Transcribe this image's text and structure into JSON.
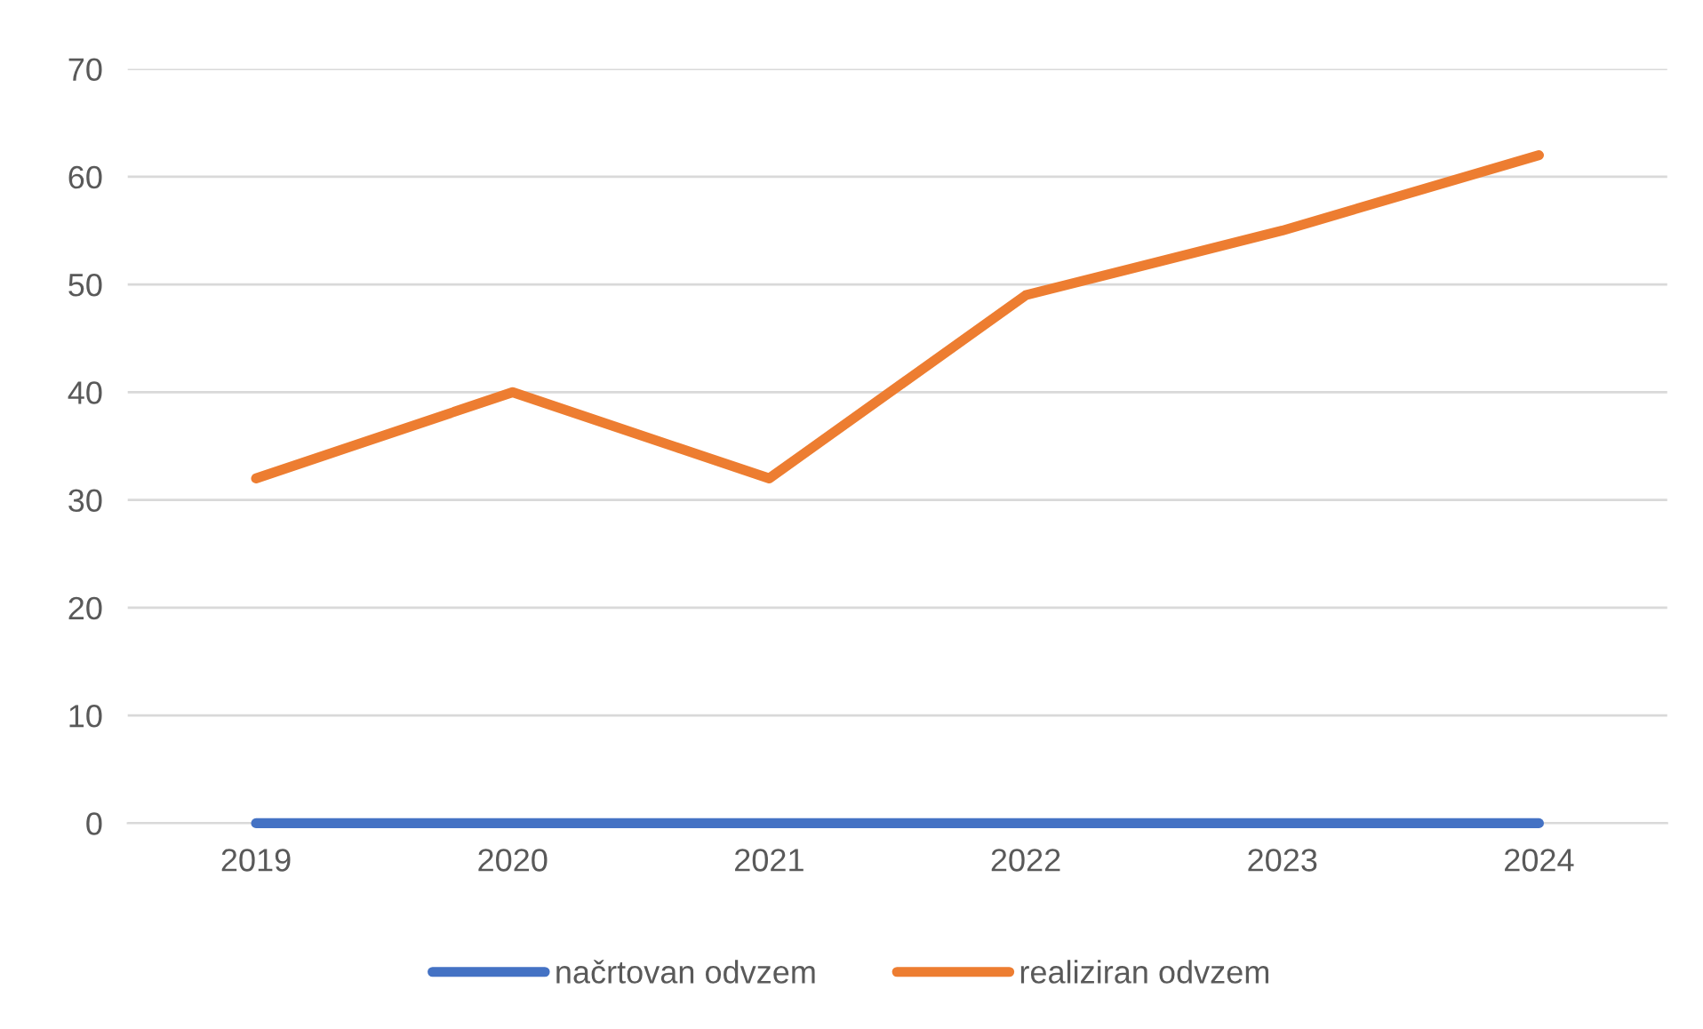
{
  "chart_data": {
    "type": "line",
    "categories": [
      "2019",
      "2020",
      "2021",
      "2022",
      "2023",
      "2024"
    ],
    "series": [
      {
        "name": "načrtovan odvzem",
        "color": "#4472c4",
        "values": [
          0,
          0,
          0,
          0,
          0,
          0
        ]
      },
      {
        "name": "realiziran odvzem",
        "color": "#ed7d31",
        "values": [
          32,
          40,
          32,
          49,
          55,
          62
        ]
      }
    ],
    "ylim": [
      0,
      70
    ],
    "yticks": [
      0,
      10,
      20,
      30,
      40,
      50,
      60,
      70
    ],
    "grid": "y",
    "legend": "bottom",
    "marker": "none",
    "line_style": "solid"
  }
}
